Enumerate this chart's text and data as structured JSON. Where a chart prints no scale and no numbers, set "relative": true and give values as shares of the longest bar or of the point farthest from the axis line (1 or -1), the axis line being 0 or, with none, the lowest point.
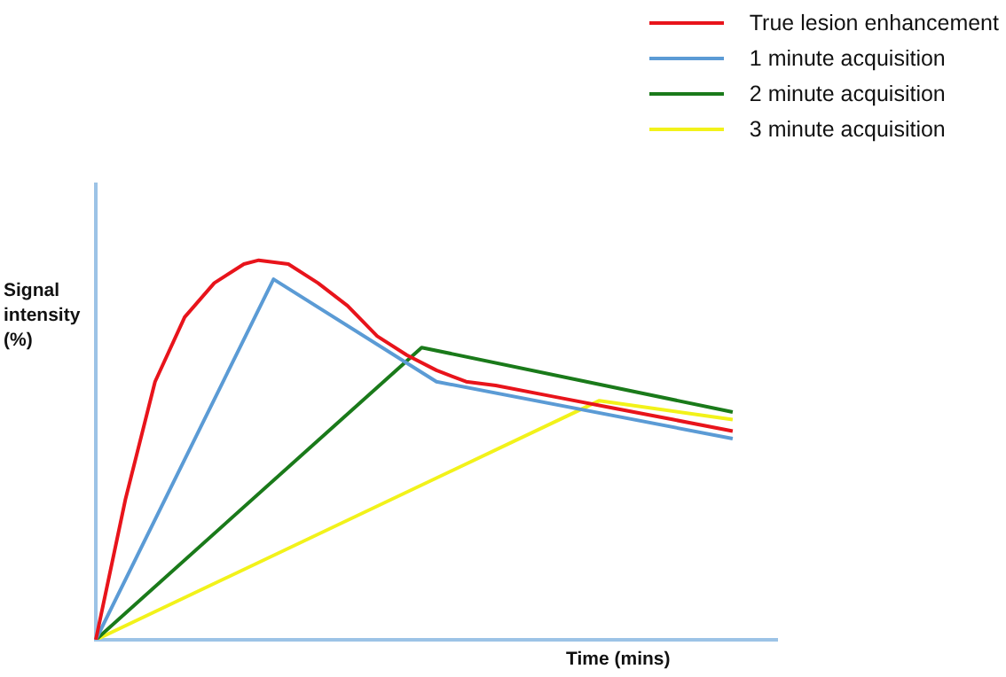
{
  "chart_data": {
    "type": "line",
    "relative": true,
    "xlabel": "Time (mins)",
    "ylabel": "Signal intensity (%)",
    "legend": "top right",
    "marker": "none",
    "line_style": "solid",
    "grid": false,
    "categories": [
      null,
      null,
      null,
      null,
      null,
      null,
      null,
      null,
      null,
      null,
      null,
      null,
      null,
      null,
      null,
      null,
      null,
      null,
      null,
      null,
      null,
      null,
      null,
      null,
      null,
      null,
      null,
      null,
      null,
      null,
      null,
      null,
      null,
      null,
      null,
      null,
      null,
      null,
      null,
      null,
      null,
      null,
      null,
      null,
      null,
      null,
      null
    ],
    "series": [
      {
        "name": "True lesion enhancement",
        "color": "#e8141b",
        "values": [
          0,
          null,
          0.37,
          null,
          0.68,
          null,
          0.85,
          null,
          0.94,
          null,
          0.99,
          1,
          null,
          0.99,
          null,
          0.94,
          null,
          0.88,
          null,
          0.8,
          null,
          0.75,
          null,
          0.71,
          null,
          0.68,
          null,
          0.67,
          null,
          null,
          null,
          0.64,
          null,
          null,
          null,
          0.61,
          null,
          null,
          null,
          0.58,
          null,
          null,
          null,
          0.55,
          null,
          null,
          null
        ]
      },
      {
        "name": "1 minute acquisition",
        "color": "#5b9bd5",
        "values": [
          0,
          null,
          null,
          null,
          null,
          null,
          null,
          null,
          null,
          null,
          null,
          null,
          0.95,
          null,
          null,
          null,
          null,
          null,
          null,
          null,
          null,
          null,
          null,
          0.68,
          null,
          null,
          null,
          null,
          null,
          null,
          null,
          null,
          null,
          null,
          null,
          null,
          null,
          null,
          null,
          null,
          null,
          null,
          null,
          0.53,
          null,
          null,
          null
        ]
      },
      {
        "name": "2 minute acquisition",
        "color": "#1a7a1a",
        "values": [
          0,
          null,
          null,
          null,
          null,
          null,
          null,
          null,
          null,
          null,
          null,
          null,
          null,
          null,
          null,
          null,
          null,
          null,
          null,
          null,
          null,
          null,
          0.77,
          null,
          null,
          null,
          null,
          null,
          null,
          null,
          null,
          null,
          null,
          null,
          null,
          null,
          null,
          null,
          null,
          null,
          null,
          null,
          null,
          0.6,
          null,
          null,
          null
        ]
      },
      {
        "name": "3 minute acquisition",
        "color": "#f2f21a",
        "values": [
          0,
          null,
          null,
          null,
          null,
          null,
          null,
          null,
          null,
          null,
          null,
          null,
          null,
          null,
          null,
          null,
          null,
          null,
          null,
          null,
          null,
          null,
          null,
          null,
          null,
          null,
          null,
          null,
          null,
          null,
          null,
          null,
          null,
          null,
          0.63,
          null,
          null,
          null,
          null,
          null,
          null,
          null,
          null,
          0.58,
          null,
          null,
          null
        ]
      }
    ]
  }
}
